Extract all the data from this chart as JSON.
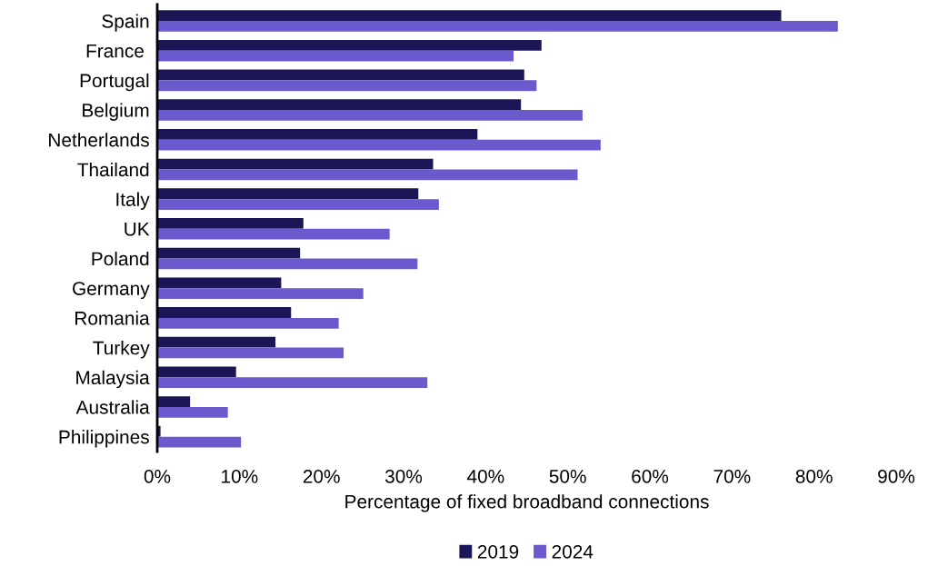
{
  "chart_data": {
    "type": "bar",
    "orientation": "horizontal",
    "xlabel": "Percentage of fixed broadband connections",
    "categories": [
      "Spain",
      "France ",
      "Portugal",
      "Belgium",
      "Netherlands",
      "Thailand",
      "Italy",
      "UK",
      "Poland",
      "Germany",
      "Romania",
      "Turkey",
      "Malaysia",
      "Australia",
      "Philippines"
    ],
    "series": [
      {
        "name": "2019",
        "color": "#1b1757",
        "values": [
          76.0,
          46.8,
          44.7,
          44.3,
          39.0,
          33.6,
          31.8,
          17.8,
          17.4,
          15.1,
          16.3,
          14.4,
          9.6,
          4.0,
          0.4
        ]
      },
      {
        "name": "2024",
        "color": "#6a5acd",
        "values": [
          82.9,
          43.4,
          46.2,
          51.8,
          54.0,
          51.2,
          34.3,
          28.3,
          31.7,
          25.1,
          22.1,
          22.7,
          32.9,
          8.6,
          10.2
        ]
      }
    ],
    "xlim": [
      0,
      90
    ],
    "xticks": [
      {
        "value": 0,
        "label": "0%"
      },
      {
        "value": 10,
        "label": "10%"
      },
      {
        "value": 20,
        "label": "20%"
      },
      {
        "value": 30,
        "label": "30%"
      },
      {
        "value": 40,
        "label": "40%"
      },
      {
        "value": 50,
        "label": "50%"
      },
      {
        "value": 60,
        "label": "60%"
      },
      {
        "value": 70,
        "label": "70%"
      },
      {
        "value": 80,
        "label": "80%"
      },
      {
        "value": 90,
        "label": "90%"
      }
    ],
    "grid": false,
    "legend": "bottom"
  }
}
